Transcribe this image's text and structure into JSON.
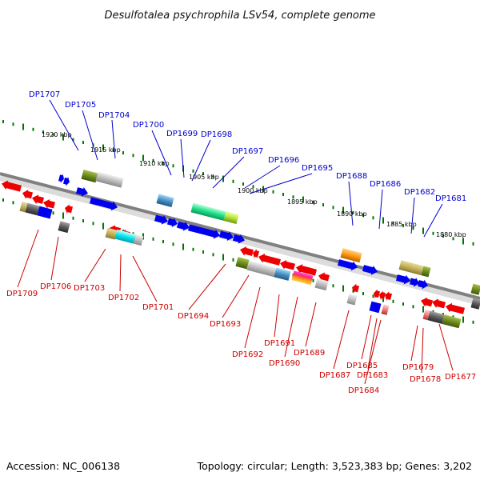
{
  "title": "Desulfotalea psychrophila LSv54, complete genome",
  "accession": "Accession: NC_006138",
  "topology": "Topology: circular; Length: 3,523,383 bp; Genes: 3,202",
  "scale_labels": [
    "1920 kbp",
    "1915 kbp",
    "1910 kbp",
    "1905 kbp",
    "1900 kbp",
    "1895 kbp",
    "1890 kbp",
    "1885 kbp",
    "1880 kbp"
  ],
  "genes_top": [
    "DP1707",
    "DP1705",
    "DP1704",
    "DP1700",
    "DP1699",
    "DP1698",
    "DP1697",
    "DP1696",
    "DP1695",
    "DP1688",
    "DP1686",
    "DP1682",
    "DP1681"
  ],
  "genes_bottom": [
    "DP1709",
    "DP1706",
    "DP1703",
    "DP1702",
    "DP1701",
    "DP1694",
    "DP1693",
    "DP1692",
    "DP1691",
    "DP1690",
    "DP1689",
    "DP1687",
    "DP1685",
    "DP1683",
    "DP1684",
    "DP1679",
    "DP1678",
    "DP1677"
  ],
  "colors": {
    "forward_strand": "#0000ee",
    "reverse_strand": "#ee0000",
    "backbone": "#808080",
    "scale_ticks": "#007700",
    "forward_label": "#0000cc",
    "reverse_label": "#cc0000"
  }
}
